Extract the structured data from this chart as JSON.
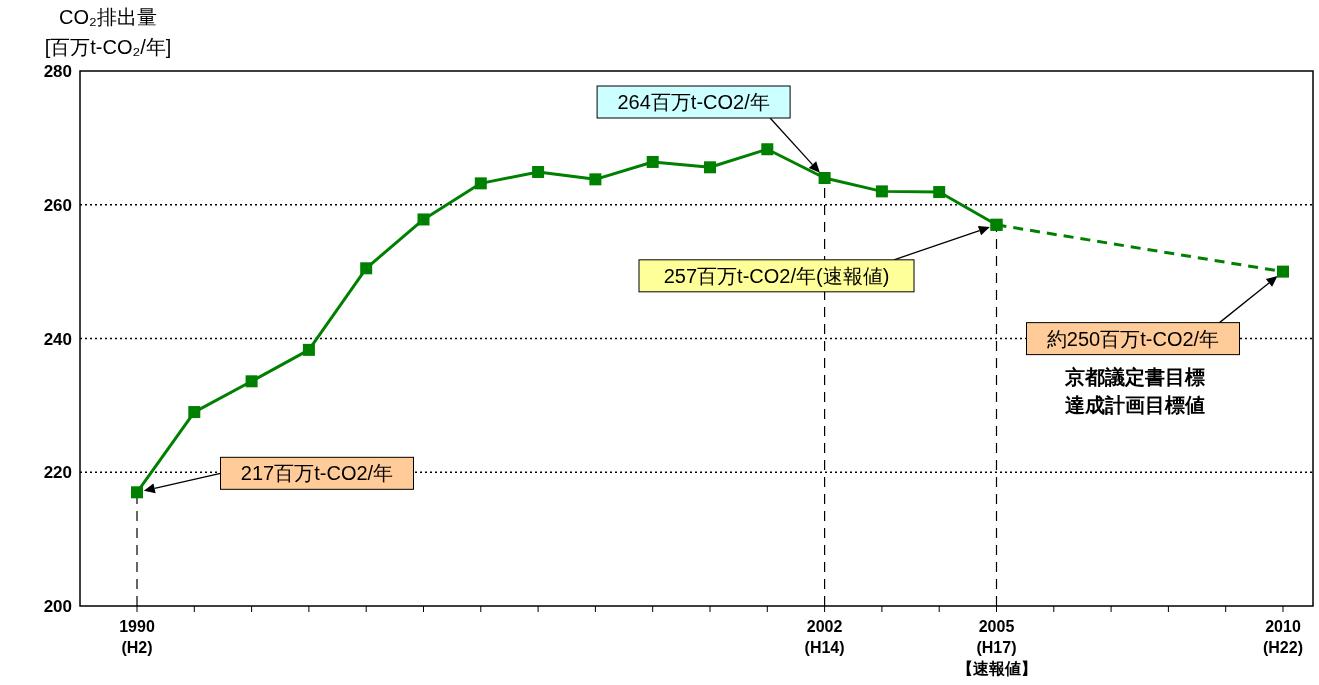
{
  "chart_data": {
    "type": "line",
    "ylabel": "CO₂排出量\n[百万t-CO₂/年]",
    "ylim": [
      200,
      280
    ],
    "yticks": [
      200,
      220,
      240,
      260,
      280
    ],
    "categories": [
      "1990\n(H2)",
      null,
      null,
      null,
      null,
      null,
      null,
      null,
      null,
      null,
      null,
      null,
      "2002\n(H14)",
      null,
      null,
      "2005\n(H17)\n【速報値】",
      null,
      null,
      null,
      null,
      "2010\n(H22)"
    ],
    "grid": "y",
    "marker": "square",
    "series": [
      {
        "color": "#008000",
        "line_style": "solid",
        "values": [
          217,
          229,
          233.6,
          238.3,
          250.5,
          257.8,
          263.2,
          264.9,
          263.8,
          266.4,
          265.6,
          268.3,
          264,
          262,
          261.9,
          257,
          null,
          null,
          null,
          null,
          null
        ]
      },
      {
        "color": "#008000",
        "line_style": "dashed",
        "values": [
          null,
          null,
          null,
          null,
          null,
          null,
          null,
          null,
          null,
          null,
          null,
          null,
          null,
          null,
          null,
          257,
          null,
          null,
          null,
          null,
          250
        ]
      }
    ],
    "ref_lines": [
      {
        "axis": "x",
        "value": "1990\n(H2)",
        "line_style": "dashed"
      },
      {
        "axis": "x",
        "value": "2002\n(H14)",
        "line_style": "dashed"
      },
      {
        "axis": "x",
        "value": "2005\n(H17)\n【速報値】",
        "line_style": "dashed"
      }
    ],
    "annotations": [
      "264百万t-CO2/年",
      "257百万t-CO2/年(速報値)",
      "約250百万t-CO2/年",
      "217百万t-CO2/年",
      "京都議定書目標達成計画目標値"
    ]
  }
}
